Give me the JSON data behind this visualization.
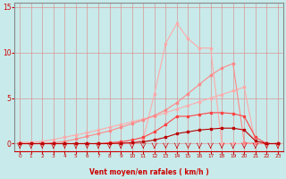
{
  "xlabel": "Vent moyen/en rafales ( km/h )",
  "xlim": [
    -0.5,
    23.5
  ],
  "ylim": [
    -0.8,
    15.5
  ],
  "yticks": [
    0,
    5,
    10,
    15
  ],
  "xticks": [
    0,
    1,
    2,
    3,
    4,
    5,
    6,
    7,
    8,
    9,
    10,
    11,
    12,
    13,
    14,
    15,
    16,
    17,
    18,
    19,
    20,
    21,
    22,
    23
  ],
  "bg_color": "#c8eaea",
  "grid_color": "#e08080",
  "line_peaked_color": "#ffaaaa",
  "line_diag1_color": "#ffaaaa",
  "line_diag2_color": "#ff8888",
  "line_mid_color": "#ff4444",
  "line_low_color": "#bb0000",
  "peaked_x": [
    0,
    1,
    2,
    3,
    4,
    5,
    6,
    7,
    8,
    9,
    10,
    11,
    12,
    13,
    14,
    15,
    16,
    17,
    18,
    19,
    20,
    21,
    22,
    23
  ],
  "peaked_y": [
    0,
    0,
    0,
    0,
    0,
    0,
    0,
    0,
    0,
    0,
    0,
    0.5,
    5.5,
    11.0,
    13.2,
    11.5,
    10.5,
    10.5,
    0,
    0,
    0,
    0,
    0,
    0
  ],
  "diag1_x": [
    0,
    1,
    2,
    3,
    4,
    5,
    6,
    7,
    8,
    9,
    10,
    11,
    12,
    13,
    14,
    15,
    16,
    17,
    18,
    19,
    20,
    21,
    22,
    23
  ],
  "diag1_y": [
    0.15,
    0.15,
    0.25,
    0.45,
    0.7,
    0.95,
    1.2,
    1.5,
    1.8,
    2.1,
    2.4,
    2.7,
    3.0,
    3.4,
    3.8,
    4.2,
    4.6,
    5.0,
    5.4,
    5.8,
    6.2,
    0,
    0,
    0
  ],
  "diag2_x": [
    0,
    1,
    2,
    3,
    4,
    5,
    6,
    7,
    8,
    9,
    10,
    11,
    12,
    13,
    14,
    15,
    16,
    17,
    18,
    19,
    20,
    21,
    22,
    23
  ],
  "diag2_y": [
    0,
    0,
    0,
    0.1,
    0.25,
    0.5,
    0.8,
    1.1,
    1.4,
    1.8,
    2.2,
    2.6,
    3.1,
    3.7,
    4.5,
    5.5,
    6.5,
    7.5,
    8.3,
    8.8,
    0.1,
    0,
    0,
    0
  ],
  "mid_x": [
    0,
    1,
    2,
    3,
    4,
    5,
    6,
    7,
    8,
    9,
    10,
    11,
    12,
    13,
    14,
    15,
    16,
    17,
    18,
    19,
    20,
    21,
    22,
    23
  ],
  "mid_y": [
    0,
    0,
    0,
    0,
    0,
    0,
    0,
    0,
    0.1,
    0.2,
    0.4,
    0.7,
    1.3,
    2.1,
    3.0,
    3.0,
    3.2,
    3.4,
    3.4,
    3.3,
    3.0,
    0.7,
    0,
    0
  ],
  "low_x": [
    0,
    1,
    2,
    3,
    4,
    5,
    6,
    7,
    8,
    9,
    10,
    11,
    12,
    13,
    14,
    15,
    16,
    17,
    18,
    19,
    20,
    21,
    22,
    23
  ],
  "low_y": [
    0,
    0,
    0,
    0,
    0,
    0,
    0,
    0,
    0,
    0.05,
    0.1,
    0.2,
    0.4,
    0.7,
    1.1,
    1.3,
    1.5,
    1.6,
    1.7,
    1.7,
    1.5,
    0.3,
    0,
    0
  ],
  "marker": "s",
  "markersize": 1.5,
  "linewidth": 0.8
}
